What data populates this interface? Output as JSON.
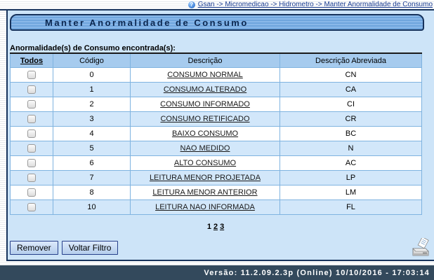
{
  "breadcrumb": {
    "text": "Gsan -> Micromedicao -> Hidrometro -> Manter Anormalidade de Consumo",
    "help_glyph": "?"
  },
  "page": {
    "title": "Manter Anormalidade de Consumo",
    "results_label": "Anormalidade(s) de Consumo encontrada(s):"
  },
  "table": {
    "headers": {
      "todos": "Todos",
      "codigo": "Código",
      "descricao": "Descrição",
      "descricao_abreviada": "Descrição Abreviada"
    },
    "rows": [
      {
        "codigo": "0",
        "descricao": "CONSUMO NORMAL",
        "abreviada": "CN"
      },
      {
        "codigo": "1",
        "descricao": "CONSUMO ALTERADO",
        "abreviada": "CA"
      },
      {
        "codigo": "2",
        "descricao": "CONSUMO INFORMADO",
        "abreviada": "CI"
      },
      {
        "codigo": "3",
        "descricao": "CONSUMO RETIFICADO",
        "abreviada": "CR"
      },
      {
        "codigo": "4",
        "descricao": "BAIXO CONSUMO",
        "abreviada": "BC"
      },
      {
        "codigo": "5",
        "descricao": "NAO MEDIDO",
        "abreviada": "N"
      },
      {
        "codigo": "6",
        "descricao": "ALTO CONSUMO",
        "abreviada": "AC"
      },
      {
        "codigo": "7",
        "descricao": "LEITURA MENOR PROJETADA",
        "abreviada": "LP"
      },
      {
        "codigo": "8",
        "descricao": "LEITURA MENOR ANTERIOR",
        "abreviada": "LM"
      },
      {
        "codigo": "10",
        "descricao": "LEITURA NAO INFORMADA",
        "abreviada": "FL"
      }
    ]
  },
  "pagination": {
    "current": "1",
    "links": [
      "2",
      "3"
    ]
  },
  "buttons": {
    "remover": "Remover",
    "voltar_filtro": "Voltar Filtro"
  },
  "footer": {
    "version_text": "Versão: 11.2.09.2.3p (Online) 10/10/2016 - 17:03:14"
  },
  "colors": {
    "panel_bg": "#cde4f8",
    "title_bar_blue": "#6fa5dd",
    "table_header_blue": "#a6cbee",
    "row_alt_blue": "#d2e7fa",
    "border_navy": "#17335c",
    "footer_bg": "#33495c",
    "breadcrumb_link": "#1c3f94"
  }
}
